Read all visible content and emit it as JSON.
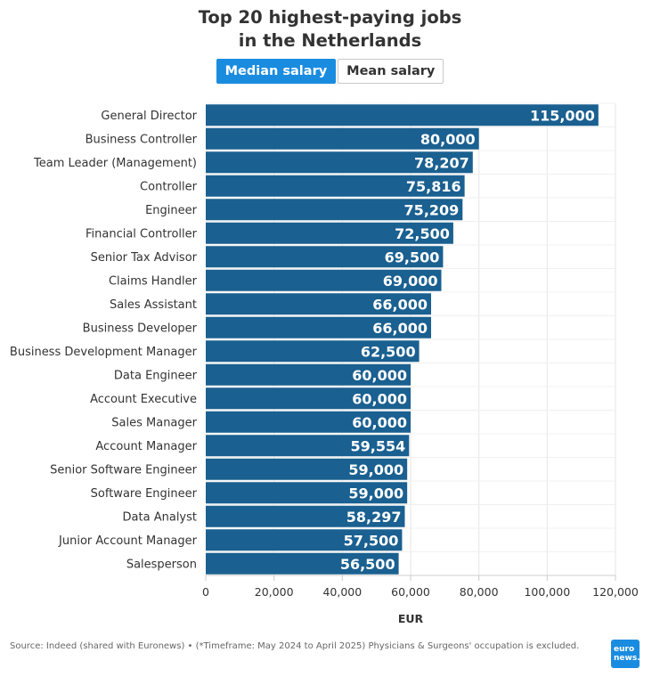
{
  "title_line1": "Top 20 highest-paying jobs",
  "title_line2": "in the Netherlands",
  "tabs": [
    {
      "label": "Median salary",
      "active": true
    },
    {
      "label": "Mean salary",
      "active": false
    }
  ],
  "footer": {
    "source": "Source: Indeed (shared with Euronews) • (*Timeframe: May 2024 to April 2025) Physicians & Surgeons' occupation is excluded.",
    "logo_line1": "euro",
    "logo_line2": "news."
  },
  "colors": {
    "bar": "#1a6090",
    "accent": "#1a8ce0",
    "grid": "#e6e6e6"
  },
  "chart_data": {
    "type": "bar",
    "orientation": "horizontal",
    "categories": [
      "General Director",
      "Business Controller",
      "Team Leader (Management)",
      "Controller",
      "Engineer",
      "Financial Controller",
      "Senior Tax Advisor",
      "Claims Handler",
      "Sales Assistant",
      "Business Developer",
      "Business Development Manager",
      "Data Engineer",
      "Account Executive",
      "Sales Manager",
      "Account Manager",
      "Senior Software Engineer",
      "Software Engineer",
      "Data Analyst",
      "Junior Account Manager",
      "Salesperson"
    ],
    "values": [
      115000,
      80000,
      78207,
      75816,
      75209,
      72500,
      69500,
      69000,
      66000,
      66000,
      62500,
      60000,
      60000,
      60000,
      59554,
      59000,
      59000,
      58297,
      57500,
      56500
    ],
    "value_labels": [
      "115,000",
      "80,000",
      "78,207",
      "75,816",
      "75,209",
      "72,500",
      "69,500",
      "69,000",
      "66,000",
      "66,000",
      "62,500",
      "60,000",
      "60,000",
      "60,000",
      "59,554",
      "59,000",
      "59,000",
      "58,297",
      "57,500",
      "56,500"
    ],
    "xlabel": "EUR",
    "xlim": [
      0,
      120000
    ],
    "xticks": [
      0,
      20000,
      40000,
      60000,
      80000,
      100000,
      120000
    ],
    "xtick_labels": [
      "0",
      "20,000",
      "40,000",
      "60,000",
      "80,000",
      "100,000",
      "120,000"
    ],
    "grid": true,
    "legend": "none"
  }
}
